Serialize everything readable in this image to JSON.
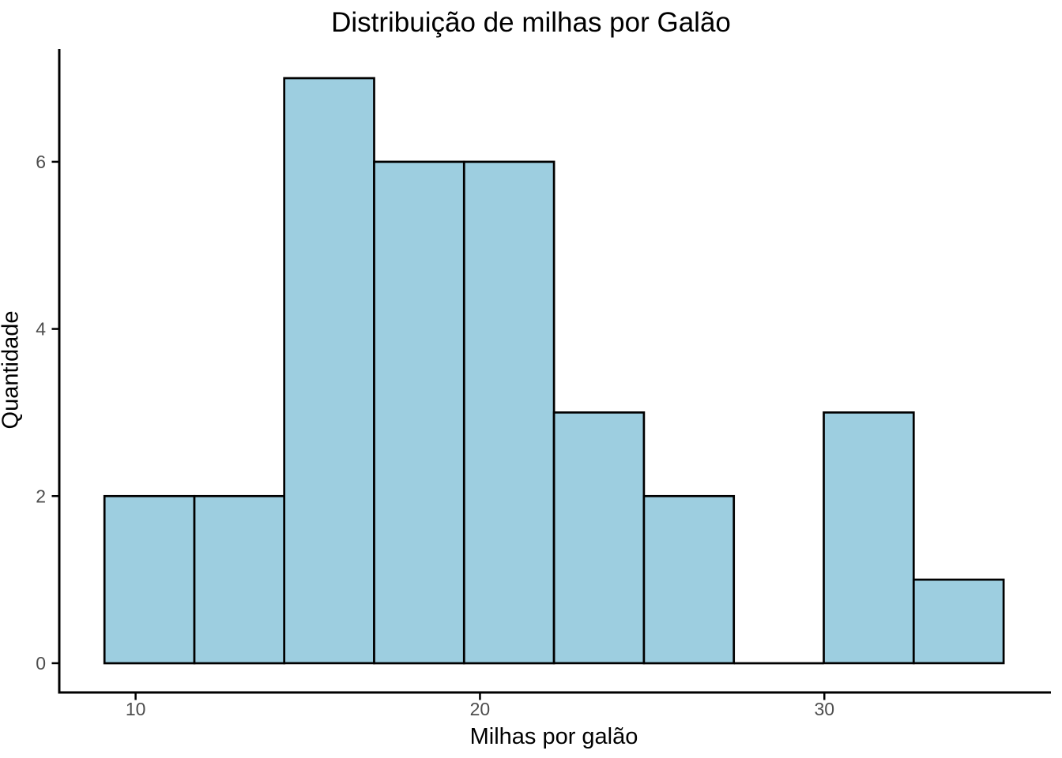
{
  "chart_data": {
    "type": "bar",
    "subtype": "histogram",
    "title": "Distribuição de milhas por Galão",
    "xlabel": "Milhas por galão",
    "ylabel": "Quantidade",
    "bin_edges": [
      9.0944,
      11.7056,
      14.3167,
      16.9278,
      19.5389,
      22.15,
      24.7611,
      27.3722,
      29.9833,
      32.5944,
      35.2056
    ],
    "counts": [
      2,
      2,
      7,
      6,
      6,
      3,
      2,
      0,
      3,
      1
    ],
    "x_ticks": [
      10,
      20,
      30
    ],
    "y_ticks": [
      0,
      2,
      4,
      6
    ],
    "xlim": [
      7.783,
      36.511
    ],
    "ylim": [
      -0.35,
      7.35
    ],
    "grid": false,
    "legend": false,
    "colors": {
      "bar_fill": "#9DCEE0",
      "bar_stroke": "#000000",
      "axis_line": "#000000",
      "tick_label": "#4D4D4D",
      "title_text": "#000000",
      "background": "#ffffff"
    }
  }
}
